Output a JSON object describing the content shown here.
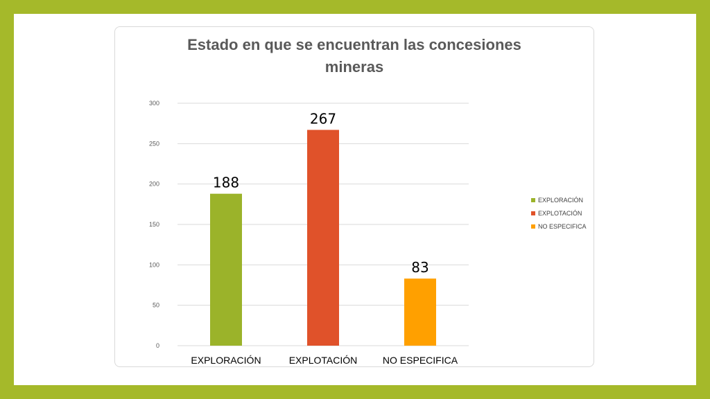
{
  "chart_data": {
    "type": "bar",
    "title_lines": [
      "Estado en que se encuentran las concesiones",
      "mineras"
    ],
    "categories": [
      "EXPLORACIÓN",
      "EXPLOTACIÓN",
      "NO ESPECIFICA"
    ],
    "values": [
      188,
      267,
      83
    ],
    "data_labels": [
      "188",
      "267",
      "83"
    ],
    "colors": [
      "#9bb32a",
      "#e0522a",
      "#ffa000"
    ],
    "ylim": [
      0,
      300
    ],
    "yticks": [
      0,
      50,
      100,
      150,
      200,
      250,
      300
    ],
    "ytick_labels": [
      "0",
      "50",
      "100",
      "150",
      "200",
      "250",
      "300"
    ],
    "grid": true,
    "legend": {
      "placement": "right",
      "entries": [
        "EXPLORACIÓN",
        "EXPLOTACIÓN",
        "NO ESPECIFICA"
      ]
    }
  },
  "theme": {
    "frame_color": "#a5b92a",
    "grid_color": "#d9d9d9",
    "title_color": "#595959"
  }
}
